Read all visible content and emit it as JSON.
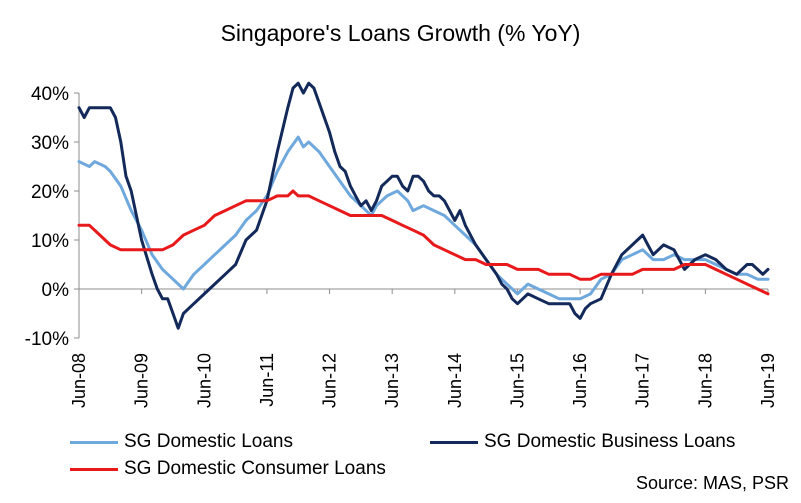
{
  "chart_data": {
    "type": "line",
    "title": "Singapore's Loans Growth (% YoY)",
    "xlabel": "",
    "ylabel": "",
    "ylim": [
      -10,
      40
    ],
    "y_ticks": [
      -10,
      0,
      10,
      20,
      30,
      40
    ],
    "y_tick_labels": [
      "-10%",
      "0%",
      "10%",
      "20%",
      "30%",
      "40%"
    ],
    "x_ticks": [
      "2008-06",
      "2009-06",
      "2010-06",
      "2011-06",
      "2012-06",
      "2013-06",
      "2014-06",
      "2015-06",
      "2016-06",
      "2017-06",
      "2018-06",
      "2019-06"
    ],
    "x_tick_labels": [
      "Jun-08",
      "Jun-09",
      "Jun-10",
      "Jun-11",
      "Jun-12",
      "Jun-13",
      "Jun-14",
      "Jun-15",
      "Jun-16",
      "Jun-17",
      "Jun-18",
      "Jun-19"
    ],
    "grid": false,
    "legend_position": "bottom",
    "series": [
      {
        "name": "SG Domestic Loans",
        "color": "#6fa8dc",
        "points": [
          [
            "2008-06",
            26
          ],
          [
            "2008-08",
            25
          ],
          [
            "2008-09",
            26
          ],
          [
            "2008-11",
            25
          ],
          [
            "2008-12",
            24
          ],
          [
            "2009-02",
            21
          ],
          [
            "2009-04",
            16
          ],
          [
            "2009-06",
            12
          ],
          [
            "2009-08",
            7
          ],
          [
            "2009-10",
            4
          ],
          [
            "2009-12",
            2
          ],
          [
            "2010-02",
            0
          ],
          [
            "2010-04",
            3
          ],
          [
            "2010-06",
            5
          ],
          [
            "2010-08",
            7
          ],
          [
            "2010-10",
            9
          ],
          [
            "2010-12",
            11
          ],
          [
            "2011-02",
            14
          ],
          [
            "2011-04",
            16
          ],
          [
            "2011-06",
            19
          ],
          [
            "2011-08",
            24
          ],
          [
            "2011-10",
            28
          ],
          [
            "2011-12",
            31
          ],
          [
            "2012-01",
            29
          ],
          [
            "2012-02",
            30
          ],
          [
            "2012-03",
            29
          ],
          [
            "2012-04",
            28
          ],
          [
            "2012-06",
            25
          ],
          [
            "2012-08",
            22
          ],
          [
            "2012-10",
            19
          ],
          [
            "2012-12",
            17
          ],
          [
            "2013-02",
            15
          ],
          [
            "2013-03",
            17
          ],
          [
            "2013-05",
            19
          ],
          [
            "2013-07",
            20
          ],
          [
            "2013-09",
            18
          ],
          [
            "2013-10",
            16
          ],
          [
            "2013-12",
            17
          ],
          [
            "2014-02",
            16
          ],
          [
            "2014-04",
            15
          ],
          [
            "2014-06",
            13
          ],
          [
            "2014-08",
            11
          ],
          [
            "2014-10",
            9
          ],
          [
            "2014-12",
            6
          ],
          [
            "2015-02",
            3
          ],
          [
            "2015-04",
            1
          ],
          [
            "2015-06",
            -1
          ],
          [
            "2015-08",
            1
          ],
          [
            "2015-10",
            0
          ],
          [
            "2015-12",
            -1
          ],
          [
            "2016-02",
            -2
          ],
          [
            "2016-04",
            -2
          ],
          [
            "2016-06",
            -2
          ],
          [
            "2016-08",
            -1
          ],
          [
            "2016-10",
            2
          ],
          [
            "2016-12",
            3
          ],
          [
            "2017-02",
            6
          ],
          [
            "2017-04",
            7
          ],
          [
            "2017-06",
            8
          ],
          [
            "2017-08",
            6
          ],
          [
            "2017-10",
            6
          ],
          [
            "2017-12",
            7
          ],
          [
            "2018-02",
            6
          ],
          [
            "2018-04",
            6
          ],
          [
            "2018-06",
            6
          ],
          [
            "2018-08",
            5
          ],
          [
            "2018-10",
            4
          ],
          [
            "2018-12",
            3
          ],
          [
            "2019-02",
            3
          ],
          [
            "2019-04",
            2
          ],
          [
            "2019-06",
            2
          ]
        ]
      },
      {
        "name": "SG Domestic Business Loans",
        "color": "#13295a",
        "points": [
          [
            "2008-06",
            37
          ],
          [
            "2008-07",
            35
          ],
          [
            "2008-08",
            37
          ],
          [
            "2008-10",
            37
          ],
          [
            "2008-12",
            37
          ],
          [
            "2009-01",
            35
          ],
          [
            "2009-02",
            30
          ],
          [
            "2009-03",
            23
          ],
          [
            "2009-04",
            20
          ],
          [
            "2009-06",
            10
          ],
          [
            "2009-08",
            3
          ],
          [
            "2009-09",
            0
          ],
          [
            "2009-10",
            -2
          ],
          [
            "2009-11",
            -2
          ],
          [
            "2009-12",
            -5
          ],
          [
            "2010-01",
            -8
          ],
          [
            "2010-02",
            -5
          ],
          [
            "2010-04",
            -3
          ],
          [
            "2010-06",
            -1
          ],
          [
            "2010-08",
            1
          ],
          [
            "2010-10",
            3
          ],
          [
            "2010-12",
            5
          ],
          [
            "2011-02",
            10
          ],
          [
            "2011-04",
            12
          ],
          [
            "2011-06",
            18
          ],
          [
            "2011-08",
            28
          ],
          [
            "2011-10",
            37
          ],
          [
            "2011-11",
            41
          ],
          [
            "2011-12",
            42
          ],
          [
            "2012-01",
            40
          ],
          [
            "2012-02",
            42
          ],
          [
            "2012-03",
            41
          ],
          [
            "2012-04",
            38
          ],
          [
            "2012-06",
            32
          ],
          [
            "2012-07",
            28
          ],
          [
            "2012-08",
            25
          ],
          [
            "2012-09",
            24
          ],
          [
            "2012-10",
            21
          ],
          [
            "2012-11",
            19
          ],
          [
            "2012-12",
            17
          ],
          [
            "2013-01",
            18
          ],
          [
            "2013-02",
            16
          ],
          [
            "2013-03",
            18
          ],
          [
            "2013-04",
            21
          ],
          [
            "2013-05",
            22
          ],
          [
            "2013-06",
            23
          ],
          [
            "2013-07",
            23
          ],
          [
            "2013-08",
            21
          ],
          [
            "2013-09",
            20
          ],
          [
            "2013-10",
            23
          ],
          [
            "2013-11",
            23
          ],
          [
            "2013-12",
            22
          ],
          [
            "2014-01",
            20
          ],
          [
            "2014-02",
            19
          ],
          [
            "2014-03",
            19
          ],
          [
            "2014-04",
            18
          ],
          [
            "2014-05",
            16
          ],
          [
            "2014-06",
            14
          ],
          [
            "2014-07",
            16
          ],
          [
            "2014-08",
            13
          ],
          [
            "2014-10",
            9
          ],
          [
            "2014-12",
            6
          ],
          [
            "2015-02",
            3
          ],
          [
            "2015-03",
            1
          ],
          [
            "2015-04",
            0
          ],
          [
            "2015-05",
            -2
          ],
          [
            "2015-06",
            -3
          ],
          [
            "2015-07",
            -2
          ],
          [
            "2015-08",
            -1
          ],
          [
            "2015-10",
            -2
          ],
          [
            "2015-12",
            -3
          ],
          [
            "2016-02",
            -3
          ],
          [
            "2016-04",
            -3
          ],
          [
            "2016-05",
            -5
          ],
          [
            "2016-06",
            -6
          ],
          [
            "2016-07",
            -4
          ],
          [
            "2016-08",
            -3
          ],
          [
            "2016-10",
            -2
          ],
          [
            "2016-12",
            3
          ],
          [
            "2017-02",
            7
          ],
          [
            "2017-04",
            9
          ],
          [
            "2017-05",
            10
          ],
          [
            "2017-06",
            11
          ],
          [
            "2017-07",
            9
          ],
          [
            "2017-08",
            7
          ],
          [
            "2017-10",
            9
          ],
          [
            "2017-12",
            8
          ],
          [
            "2018-01",
            6
          ],
          [
            "2018-02",
            4
          ],
          [
            "2018-03",
            5
          ],
          [
            "2018-04",
            6
          ],
          [
            "2018-06",
            7
          ],
          [
            "2018-08",
            6
          ],
          [
            "2018-10",
            4
          ],
          [
            "2018-12",
            3
          ],
          [
            "2019-02",
            5
          ],
          [
            "2019-03",
            5
          ],
          [
            "2019-04",
            4
          ],
          [
            "2019-05",
            3
          ],
          [
            "2019-06",
            4
          ]
        ]
      },
      {
        "name": "SG Domestic Consumer Loans",
        "color": "#e8191b",
        "points": [
          [
            "2008-06",
            13
          ],
          [
            "2008-08",
            13
          ],
          [
            "2008-10",
            11
          ],
          [
            "2008-12",
            9
          ],
          [
            "2009-02",
            8
          ],
          [
            "2009-04",
            8
          ],
          [
            "2009-06",
            8
          ],
          [
            "2009-08",
            8
          ],
          [
            "2009-10",
            8
          ],
          [
            "2009-12",
            9
          ],
          [
            "2010-02",
            11
          ],
          [
            "2010-04",
            12
          ],
          [
            "2010-06",
            13
          ],
          [
            "2010-08",
            15
          ],
          [
            "2010-10",
            16
          ],
          [
            "2010-12",
            17
          ],
          [
            "2011-02",
            18
          ],
          [
            "2011-04",
            18
          ],
          [
            "2011-06",
            18
          ],
          [
            "2011-08",
            19
          ],
          [
            "2011-10",
            19
          ],
          [
            "2011-11",
            20
          ],
          [
            "2011-12",
            19
          ],
          [
            "2012-02",
            19
          ],
          [
            "2012-04",
            18
          ],
          [
            "2012-06",
            17
          ],
          [
            "2012-08",
            16
          ],
          [
            "2012-10",
            15
          ],
          [
            "2012-12",
            15
          ],
          [
            "2013-02",
            15
          ],
          [
            "2013-04",
            15
          ],
          [
            "2013-06",
            14
          ],
          [
            "2013-08",
            13
          ],
          [
            "2013-10",
            12
          ],
          [
            "2013-12",
            11
          ],
          [
            "2014-02",
            9
          ],
          [
            "2014-04",
            8
          ],
          [
            "2014-06",
            7
          ],
          [
            "2014-08",
            6
          ],
          [
            "2014-10",
            6
          ],
          [
            "2014-12",
            5
          ],
          [
            "2015-02",
            5
          ],
          [
            "2015-04",
            5
          ],
          [
            "2015-06",
            4
          ],
          [
            "2015-08",
            4
          ],
          [
            "2015-10",
            4
          ],
          [
            "2015-12",
            3
          ],
          [
            "2016-02",
            3
          ],
          [
            "2016-04",
            3
          ],
          [
            "2016-06",
            2
          ],
          [
            "2016-08",
            2
          ],
          [
            "2016-10",
            3
          ],
          [
            "2016-12",
            3
          ],
          [
            "2017-02",
            3
          ],
          [
            "2017-04",
            3
          ],
          [
            "2017-06",
            4
          ],
          [
            "2017-08",
            4
          ],
          [
            "2017-10",
            4
          ],
          [
            "2017-12",
            4
          ],
          [
            "2018-02",
            5
          ],
          [
            "2018-04",
            5
          ],
          [
            "2018-06",
            5
          ],
          [
            "2018-08",
            4
          ],
          [
            "2018-10",
            3
          ],
          [
            "2018-12",
            2
          ],
          [
            "2019-02",
            1
          ],
          [
            "2019-04",
            0
          ],
          [
            "2019-06",
            -1
          ]
        ]
      }
    ]
  },
  "source_text": "Source: MAS, PSR"
}
